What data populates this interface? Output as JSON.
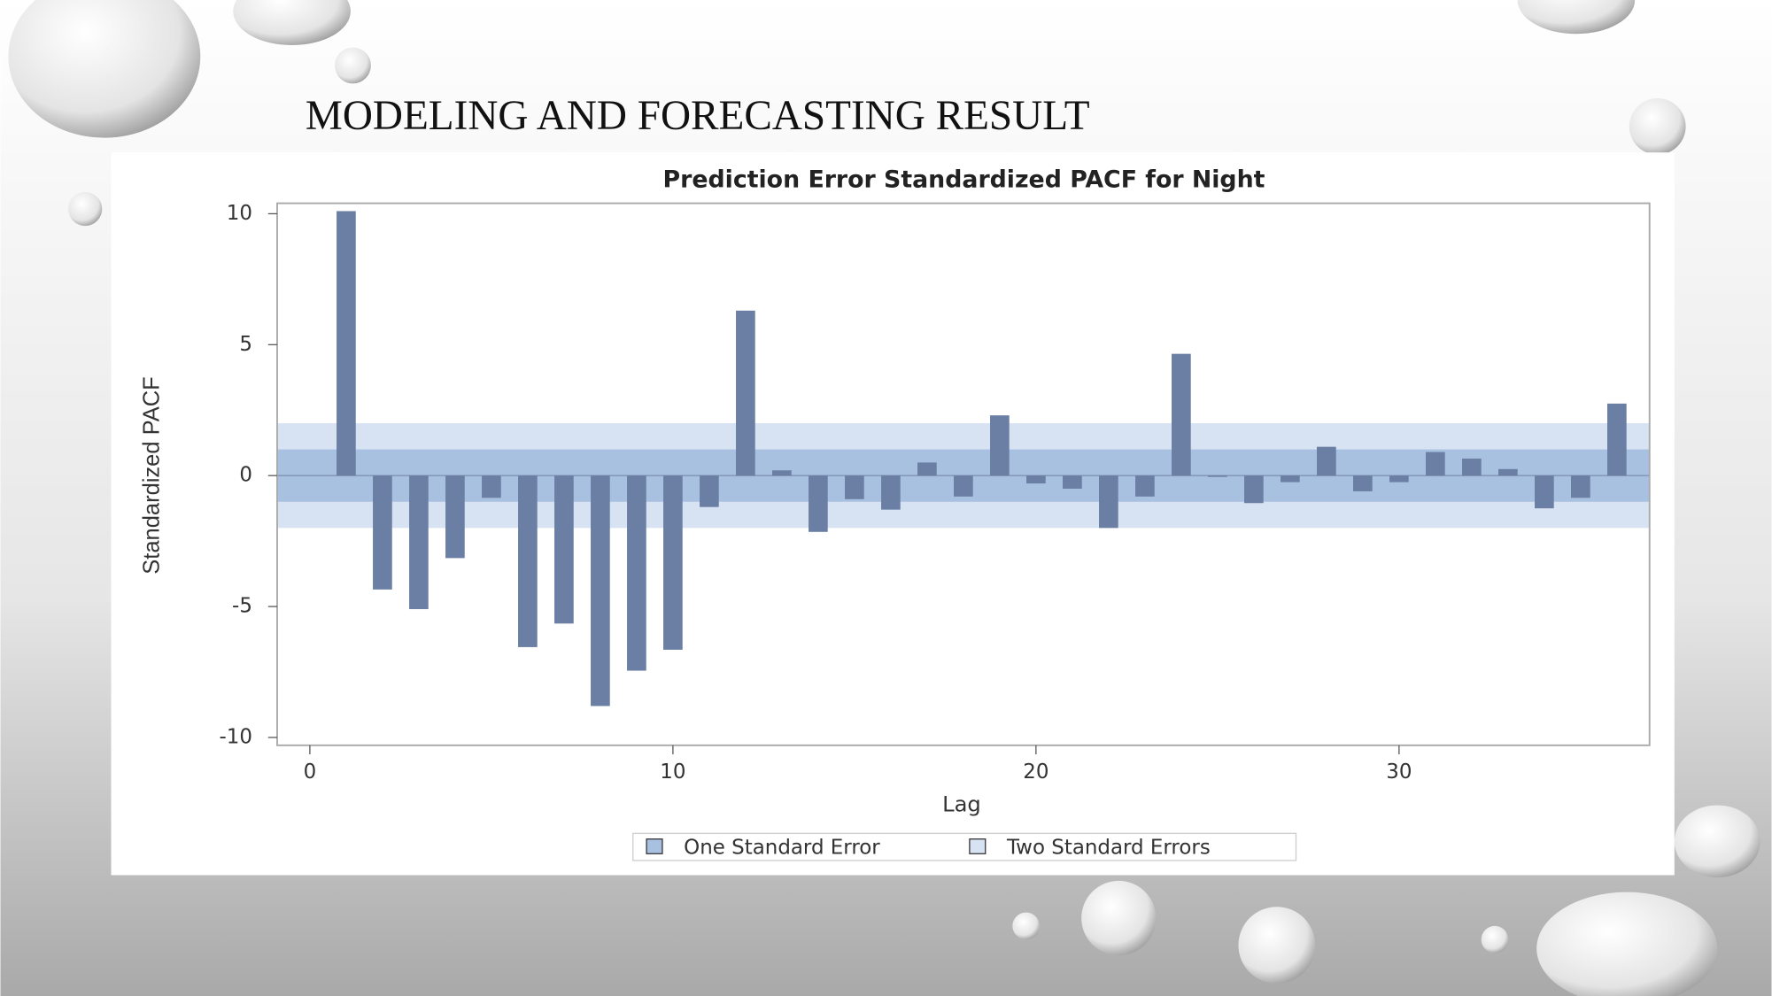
{
  "slide": {
    "title": "MODELING AND FORECASTING RESULT"
  },
  "chart_data": {
    "type": "bar",
    "title": "Prediction Error Standardized PACF for Night",
    "x_label": "Lag",
    "y_label": "Standardized PACF",
    "x": [
      1,
      2,
      3,
      4,
      5,
      6,
      7,
      8,
      9,
      10,
      11,
      12,
      13,
      14,
      15,
      16,
      17,
      18,
      19,
      20,
      21,
      22,
      23,
      24,
      25,
      26,
      27,
      28,
      29,
      30,
      31,
      32,
      33,
      34,
      35,
      36
    ],
    "values": [
      10.1,
      -4.35,
      -5.1,
      -3.15,
      -0.85,
      -6.55,
      -5.65,
      -8.8,
      -7.45,
      -6.65,
      -1.2,
      6.3,
      0.2,
      -2.15,
      -0.9,
      -1.3,
      0.5,
      -0.8,
      2.3,
      -0.3,
      -0.5,
      -2.0,
      -0.8,
      4.65,
      -0.05,
      -1.05,
      -0.25,
      1.1,
      -0.6,
      -0.25,
      0.9,
      0.65,
      0.25,
      -1.25,
      -0.85,
      2.75
    ],
    "color": "#6a7fa3",
    "bands": [
      {
        "name": "One Standard Error",
        "value": 1,
        "color": "#a9c1e1"
      },
      {
        "name": "Two Standard Errors",
        "value": 2,
        "color": "#d7e3f3"
      }
    ],
    "xlim": [
      -0.9,
      36.9
    ],
    "ylim": [
      -10.3,
      10.4
    ],
    "xticks": [
      0,
      10,
      20,
      30
    ],
    "yticks": [
      -10,
      -5,
      0,
      5,
      10
    ]
  }
}
